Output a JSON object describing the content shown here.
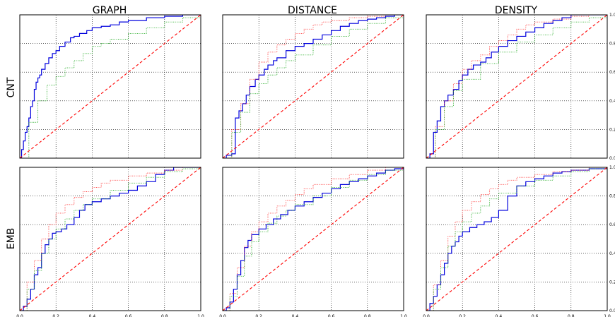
{
  "columns": [
    "GRAPH",
    "DISTANCE",
    "DENSITY"
  ],
  "rows": [
    "CNT",
    "EMB"
  ],
  "colors": {
    "solid": "#0000dd",
    "dotted_red": "#ff3333",
    "dotted_green": "#22aa22",
    "diagonal": "#ff0000",
    "grid": "#000000"
  },
  "chart_data": [
    {
      "type": "line",
      "column": "GRAPH",
      "row": "CNT",
      "xlim": [
        0,
        1
      ],
      "ylim": [
        0,
        1
      ],
      "grid": true,
      "xticks": [],
      "yticks": [],
      "series": [
        {
          "style": "solid",
          "color": "#0000dd",
          "x": [
            0,
            0.01,
            0.02,
            0.03,
            0.04,
            0.05,
            0.06,
            0.07,
            0.08,
            0.09,
            0.1,
            0.11,
            0.12,
            0.14,
            0.16,
            0.18,
            0.2,
            0.22,
            0.25,
            0.28,
            0.3,
            0.33,
            0.37,
            0.4,
            0.45,
            0.5,
            0.55,
            0.6,
            0.7,
            0.8,
            0.9,
            1.0
          ],
          "y": [
            0,
            0.06,
            0.12,
            0.18,
            0.22,
            0.28,
            0.36,
            0.4,
            0.48,
            0.53,
            0.56,
            0.58,
            0.62,
            0.66,
            0.7,
            0.73,
            0.75,
            0.78,
            0.81,
            0.84,
            0.85,
            0.87,
            0.89,
            0.91,
            0.92,
            0.93,
            0.95,
            0.96,
            0.98,
            0.99,
            1.0,
            1.0
          ]
        },
        {
          "style": "dotted",
          "color": "#22aa22",
          "x": [
            0,
            0.05,
            0.1,
            0.15,
            0.2,
            0.25,
            0.3,
            0.35,
            0.4,
            0.45,
            0.5,
            0.6,
            0.7,
            0.8,
            0.9,
            1.0
          ],
          "y": [
            0,
            0.25,
            0.4,
            0.51,
            0.57,
            0.63,
            0.68,
            0.73,
            0.78,
            0.8,
            0.83,
            0.87,
            0.91,
            0.95,
            0.98,
            1.0
          ]
        },
        {
          "style": "dashed",
          "color": "#ff0000",
          "x": [
            0,
            1
          ],
          "y": [
            0,
            1
          ]
        }
      ]
    },
    {
      "type": "line",
      "column": "DISTANCE",
      "row": "CNT",
      "xlim": [
        0,
        1
      ],
      "ylim": [
        0,
        1
      ],
      "grid": true,
      "xticks": [],
      "yticks": [],
      "series": [
        {
          "style": "solid",
          "color": "#0000dd",
          "x": [
            0,
            0.02,
            0.05,
            0.07,
            0.09,
            0.11,
            0.13,
            0.15,
            0.18,
            0.2,
            0.23,
            0.25,
            0.28,
            0.3,
            0.35,
            0.4,
            0.45,
            0.5,
            0.55,
            0.6,
            0.65,
            0.7,
            0.75,
            0.8,
            0.85,
            0.9,
            0.95,
            1.0
          ],
          "y": [
            0,
            0.02,
            0.03,
            0.28,
            0.33,
            0.38,
            0.44,
            0.5,
            0.55,
            0.58,
            0.62,
            0.65,
            0.68,
            0.7,
            0.75,
            0.78,
            0.8,
            0.83,
            0.86,
            0.89,
            0.92,
            0.94,
            0.96,
            0.97,
            0.98,
            0.99,
            1.0,
            1.0
          ]
        },
        {
          "style": "dotted",
          "color": "#ff3333",
          "x": [
            0,
            0.05,
            0.1,
            0.15,
            0.2,
            0.25,
            0.3,
            0.35,
            0.4,
            0.45,
            0.5,
            0.55,
            0.6,
            0.7,
            0.8,
            0.9,
            1.0
          ],
          "y": [
            0,
            0.2,
            0.38,
            0.55,
            0.67,
            0.74,
            0.79,
            0.83,
            0.87,
            0.9,
            0.93,
            0.95,
            0.96,
            0.98,
            0.99,
            1.0,
            1.0
          ]
        },
        {
          "style": "dotted",
          "color": "#22aa22",
          "x": [
            0,
            0.05,
            0.1,
            0.15,
            0.2,
            0.25,
            0.3,
            0.35,
            0.4,
            0.5,
            0.6,
            0.7,
            0.8,
            0.9,
            1.0
          ],
          "y": [
            0,
            0.18,
            0.32,
            0.45,
            0.52,
            0.58,
            0.63,
            0.68,
            0.72,
            0.79,
            0.85,
            0.9,
            0.94,
            0.98,
            1.0
          ]
        },
        {
          "style": "dashed",
          "color": "#ff0000",
          "x": [
            0,
            1
          ],
          "y": [
            0,
            1
          ]
        }
      ]
    },
    {
      "type": "line",
      "column": "DENSITY",
      "row": "CNT",
      "xlim": [
        0,
        1
      ],
      "ylim": [
        0,
        1
      ],
      "grid": true,
      "xticks": [],
      "yticks": [
        "0.0",
        "0.2",
        "0.4",
        "0.6",
        "0.8",
        "1.0"
      ],
      "series": [
        {
          "style": "solid",
          "color": "#0000dd",
          "x": [
            0,
            0.02,
            0.04,
            0.06,
            0.08,
            0.1,
            0.12,
            0.15,
            0.18,
            0.2,
            0.23,
            0.26,
            0.3,
            0.33,
            0.36,
            0.4,
            0.45,
            0.5,
            0.55,
            0.6,
            0.65,
            0.7,
            0.75,
            0.8,
            0.85,
            0.9,
            1.0
          ],
          "y": [
            0,
            0.03,
            0.18,
            0.26,
            0.36,
            0.4,
            0.44,
            0.48,
            0.54,
            0.58,
            0.62,
            0.65,
            0.67,
            0.7,
            0.74,
            0.78,
            0.82,
            0.85,
            0.88,
            0.91,
            0.94,
            0.96,
            0.98,
            1.0,
            1.0,
            1.0,
            1.0
          ]
        },
        {
          "style": "dotted",
          "color": "#ff3333",
          "x": [
            0,
            0.05,
            0.1,
            0.15,
            0.2,
            0.25,
            0.3,
            0.35,
            0.4,
            0.45,
            0.5,
            0.55,
            0.6,
            0.7,
            0.8,
            0.9,
            1.0
          ],
          "y": [
            0,
            0.22,
            0.4,
            0.52,
            0.62,
            0.68,
            0.72,
            0.78,
            0.82,
            0.86,
            0.9,
            0.93,
            0.95,
            0.97,
            0.99,
            1.0,
            1.0
          ]
        },
        {
          "style": "dotted",
          "color": "#22aa22",
          "x": [
            0,
            0.05,
            0.1,
            0.15,
            0.2,
            0.3,
            0.4,
            0.5,
            0.6,
            0.7,
            0.8,
            0.9,
            1.0
          ],
          "y": [
            0,
            0.2,
            0.36,
            0.47,
            0.55,
            0.66,
            0.74,
            0.81,
            0.86,
            0.91,
            0.95,
            0.98,
            1.0
          ]
        },
        {
          "style": "dashed",
          "color": "#ff0000",
          "x": [
            0,
            1
          ],
          "y": [
            0,
            1
          ]
        }
      ]
    },
    {
      "type": "line",
      "column": "GRAPH",
      "row": "EMB",
      "xlim": [
        0,
        1
      ],
      "ylim": [
        0,
        1
      ],
      "grid": true,
      "xticks": [
        "0.0",
        "0.2",
        "0.4",
        "0.6",
        "0.8",
        "1.0"
      ],
      "yticks": [],
      "series": [
        {
          "style": "solid",
          "color": "#0000dd",
          "x": [
            0,
            0.02,
            0.04,
            0.06,
            0.08,
            0.1,
            0.12,
            0.14,
            0.16,
            0.18,
            0.2,
            0.23,
            0.26,
            0.3,
            0.33,
            0.36,
            0.4,
            0.45,
            0.5,
            0.55,
            0.6,
            0.65,
            0.7,
            0.75,
            0.8,
            0.85,
            1.0
          ],
          "y": [
            0,
            0.03,
            0.08,
            0.15,
            0.25,
            0.3,
            0.4,
            0.46,
            0.5,
            0.54,
            0.55,
            0.57,
            0.6,
            0.65,
            0.7,
            0.74,
            0.76,
            0.78,
            0.8,
            0.82,
            0.84,
            0.87,
            0.9,
            0.95,
            0.98,
            1.0,
            1.0
          ]
        },
        {
          "style": "dotted",
          "color": "#ff3333",
          "x": [
            0,
            0.04,
            0.08,
            0.12,
            0.16,
            0.2,
            0.25,
            0.3,
            0.35,
            0.4,
            0.45,
            0.5,
            0.6,
            0.7,
            0.8,
            0.9,
            1.0
          ],
          "y": [
            0,
            0.2,
            0.35,
            0.5,
            0.6,
            0.68,
            0.74,
            0.79,
            0.83,
            0.86,
            0.89,
            0.91,
            0.94,
            0.96,
            0.98,
            1.0,
            1.0
          ]
        },
        {
          "style": "dotted",
          "color": "#22aa22",
          "x": [
            0,
            0.04,
            0.08,
            0.12,
            0.16,
            0.2,
            0.25,
            0.3,
            0.35,
            0.4,
            0.5,
            0.6,
            0.7,
            0.8,
            0.9,
            1.0
          ],
          "y": [
            0,
            0.15,
            0.28,
            0.4,
            0.5,
            0.57,
            0.64,
            0.7,
            0.74,
            0.78,
            0.84,
            0.89,
            0.93,
            0.97,
            0.99,
            1.0
          ]
        },
        {
          "style": "dashed",
          "color": "#ff0000",
          "x": [
            0,
            1
          ],
          "y": [
            0,
            1
          ]
        }
      ]
    },
    {
      "type": "line",
      "column": "DISTANCE",
      "row": "EMB",
      "xlim": [
        0,
        1
      ],
      "ylim": [
        0,
        1
      ],
      "grid": true,
      "xticks": [
        "0.0",
        "0.2",
        "0.4",
        "0.6",
        "0.8",
        "1.0"
      ],
      "yticks": [],
      "series": [
        {
          "style": "solid",
          "color": "#0000dd",
          "x": [
            0,
            0.02,
            0.04,
            0.06,
            0.08,
            0.1,
            0.12,
            0.14,
            0.16,
            0.2,
            0.24,
            0.28,
            0.32,
            0.36,
            0.4,
            0.45,
            0.5,
            0.55,
            0.6,
            0.65,
            0.7,
            0.75,
            0.8,
            0.85,
            0.9,
            0.95,
            1.0
          ],
          "y": [
            0,
            0.02,
            0.06,
            0.15,
            0.25,
            0.35,
            0.44,
            0.49,
            0.53,
            0.57,
            0.6,
            0.64,
            0.67,
            0.7,
            0.73,
            0.76,
            0.79,
            0.82,
            0.85,
            0.88,
            0.9,
            0.92,
            0.94,
            0.96,
            0.98,
            0.99,
            1.0
          ]
        },
        {
          "style": "dotted",
          "color": "#ff3333",
          "x": [
            0,
            0.04,
            0.08,
            0.12,
            0.16,
            0.2,
            0.25,
            0.3,
            0.35,
            0.4,
            0.45,
            0.5,
            0.6,
            0.7,
            0.8,
            0.9,
            1.0
          ],
          "y": [
            0,
            0.12,
            0.3,
            0.45,
            0.55,
            0.62,
            0.68,
            0.73,
            0.77,
            0.81,
            0.85,
            0.88,
            0.92,
            0.95,
            0.98,
            1.0,
            1.0
          ]
        },
        {
          "style": "dotted",
          "color": "#22aa22",
          "x": [
            0,
            0.04,
            0.08,
            0.12,
            0.16,
            0.2,
            0.25,
            0.3,
            0.35,
            0.4,
            0.5,
            0.6,
            0.7,
            0.8,
            0.9,
            1.0
          ],
          "y": [
            0,
            0.1,
            0.24,
            0.38,
            0.48,
            0.55,
            0.61,
            0.66,
            0.7,
            0.74,
            0.8,
            0.86,
            0.91,
            0.95,
            0.98,
            1.0
          ]
        },
        {
          "style": "dashed",
          "color": "#ff0000",
          "x": [
            0,
            1
          ],
          "y": [
            0,
            1
          ]
        }
      ]
    },
    {
      "type": "line",
      "column": "DENSITY",
      "row": "EMB",
      "xlim": [
        0,
        1
      ],
      "ylim": [
        0,
        1
      ],
      "grid": true,
      "xticks": [
        "0.0",
        "0.2",
        "0.4",
        "0.6",
        "0.8",
        "1.0"
      ],
      "yticks": [
        "0.0",
        "0.2",
        "0.4",
        "0.6",
        "0.8",
        "1.0"
      ],
      "series": [
        {
          "style": "solid",
          "color": "#0000dd",
          "x": [
            0,
            0.02,
            0.04,
            0.06,
            0.08,
            0.1,
            0.12,
            0.14,
            0.16,
            0.18,
            0.2,
            0.24,
            0.28,
            0.32,
            0.36,
            0.4,
            0.45,
            0.5,
            0.55,
            0.6,
            0.65,
            0.7,
            0.75,
            0.8,
            0.9,
            1.0
          ],
          "y": [
            0,
            0.05,
            0.1,
            0.18,
            0.25,
            0.33,
            0.4,
            0.45,
            0.48,
            0.52,
            0.55,
            0.58,
            0.6,
            0.62,
            0.65,
            0.7,
            0.8,
            0.87,
            0.9,
            0.92,
            0.94,
            0.96,
            0.97,
            0.98,
            0.99,
            1.0
          ]
        },
        {
          "style": "dotted",
          "color": "#ff3333",
          "x": [
            0,
            0.04,
            0.08,
            0.12,
            0.16,
            0.2,
            0.25,
            0.3,
            0.35,
            0.4,
            0.45,
            0.5,
            0.6,
            0.7,
            0.8,
            0.9,
            1.0
          ],
          "y": [
            0,
            0.18,
            0.35,
            0.52,
            0.62,
            0.7,
            0.76,
            0.81,
            0.85,
            0.88,
            0.91,
            0.93,
            0.95,
            0.97,
            0.98,
            1.0,
            1.0
          ]
        },
        {
          "style": "dotted",
          "color": "#22aa22",
          "x": [
            0,
            0.04,
            0.08,
            0.12,
            0.16,
            0.2,
            0.25,
            0.3,
            0.35,
            0.4,
            0.5,
            0.6,
            0.7,
            0.8,
            0.9,
            1.0
          ],
          "y": [
            0,
            0.15,
            0.3,
            0.45,
            0.55,
            0.62,
            0.68,
            0.73,
            0.78,
            0.82,
            0.87,
            0.91,
            0.94,
            0.97,
            0.99,
            1.0
          ]
        },
        {
          "style": "dashed",
          "color": "#ff0000",
          "x": [
            0,
            1
          ],
          "y": [
            0,
            1
          ]
        }
      ]
    }
  ]
}
